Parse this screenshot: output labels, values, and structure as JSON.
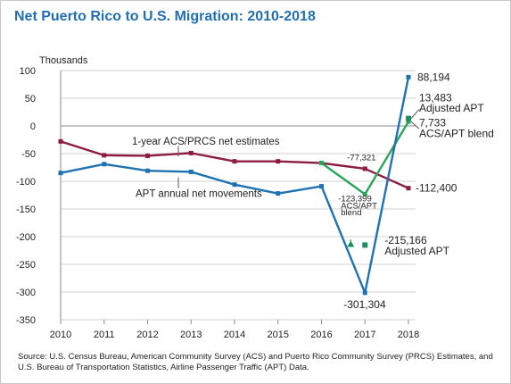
{
  "chart_data": {
    "type": "line",
    "title": "Net Puerto Rico to U.S. Migration: 2010-2018",
    "ylabel": "Thousands",
    "xlabel": "",
    "x": [
      "2010",
      "2011",
      "2012",
      "2013",
      "2014",
      "2015",
      "2016",
      "2017",
      "2018"
    ],
    "ylim": [
      -350,
      100
    ],
    "yticks": [
      100,
      50,
      0,
      -50,
      -100,
      -150,
      -200,
      -250,
      -300,
      -350
    ],
    "grid": "horizontal",
    "series": [
      {
        "name": "1-year ACS/PRCS net estimates",
        "color": "#8c1d40",
        "values": [
          -28,
          -53,
          -54,
          -49,
          -64,
          -64,
          -67,
          -77.321,
          -112.4
        ]
      },
      {
        "name": "APT annual net movements",
        "color": "#1f72b2",
        "values": [
          -85,
          -69,
          -81,
          -83,
          -106,
          -122,
          -109,
          -301.304,
          88.194
        ]
      },
      {
        "name": "ACS/APT blend",
        "color": "#2aa55a",
        "points": [
          {
            "x": "2016",
            "y": -67
          },
          {
            "x": "2017",
            "y": -123.399
          },
          {
            "x": "2018",
            "y": 7.733
          }
        ]
      },
      {
        "name": "Adjusted APT",
        "color": "#1e8f5e",
        "points": [
          {
            "x": "2017",
            "y": -215.166
          },
          {
            "x": "2018",
            "y": 13.483
          }
        ]
      }
    ],
    "annotations": {
      "acs_label": "1-year ACS/PRCS net estimates",
      "apt_label": "APT annual net movements",
      "apt_2018": "88,194",
      "adj_2018_value": "13,483",
      "adj_2018_name": "Adjusted APT",
      "blend_2018_value": "7,733",
      "blend_2018_name": "ACS/APT blend",
      "acs_2018": "-112,400",
      "acs_2017": "-77,321",
      "blend_2017_value": "-123,399",
      "blend_2017_line2": "ACS/APT",
      "blend_2017_line3": "blend",
      "adj_2017_value": "-215,166",
      "adj_2017_name": "Adjusted APT",
      "apt_2017": "-301,304"
    }
  },
  "source_note": "Source: U.S. Census Bureau, American Community Survey (ACS) and Puerto Rico Community Survey (PRCS) Estimates, and U.S. Bureau of Transportation Statistics, Airline Passenger Traffic (APT) Data."
}
